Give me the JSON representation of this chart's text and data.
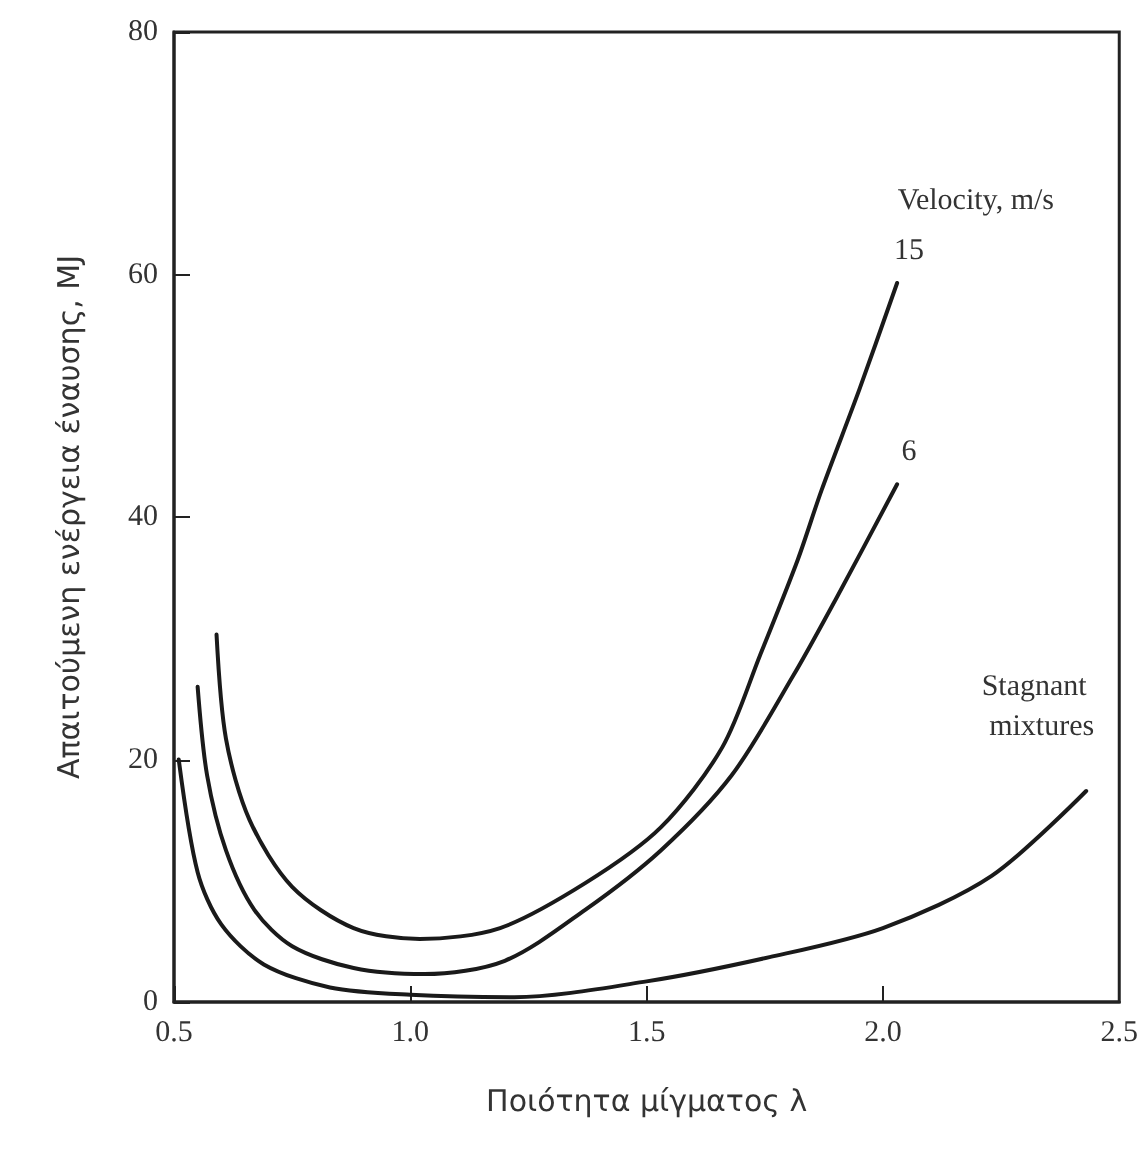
{
  "chart_data": {
    "type": "line",
    "xlabel": "Ποιότητα μίγματος λ",
    "ylabel": "Απαιτούμενη ενέργεια έναυσης, MJ",
    "legend_title": "Velocity, m/s",
    "xlim": [
      0.5,
      2.5
    ],
    "xticks": [
      {
        "value": 0.5,
        "label": "0.5"
      },
      {
        "value": 1,
        "label": "1.0"
      },
      {
        "value": 1.5,
        "label": "1.5"
      },
      {
        "value": 2,
        "label": "2.0"
      },
      {
        "value": 2.5,
        "label": "2.5"
      }
    ],
    "ylim": [
      0,
      80
    ],
    "yticks": [
      0,
      20,
      40,
      60,
      80
    ],
    "grid": false,
    "marker": "none",
    "line_style": "solid",
    "series": [
      {
        "name": "15",
        "color": "#1a1a1a",
        "x": [
          0.59,
          0.61,
          0.66,
          0.75,
          0.88,
          1.02,
          1.19,
          1.37,
          1.53,
          1.66,
          1.74,
          1.82,
          1.87,
          1.95,
          2.03
        ],
        "values": [
          30.3,
          21.7,
          15,
          9.5,
          6.1,
          5.2,
          6.1,
          9.8,
          14.4,
          21,
          28.6,
          36.5,
          42.2,
          50.5,
          59.3
        ]
      },
      {
        "name": "6",
        "color": "#1a1a1a",
        "x": [
          0.55,
          0.57,
          0.61,
          0.67,
          0.75,
          0.88,
          1.03,
          1.2,
          1.37,
          1.53,
          1.68,
          1.81,
          1.9,
          2.03
        ],
        "values": [
          26,
          18.7,
          12.5,
          7.6,
          4.6,
          2.8,
          2.3,
          3.4,
          7.6,
          12.5,
          18.7,
          26.9,
          33.2,
          42.7
        ]
      },
      {
        "name": "Stagnant mixtures",
        "color": "#1a1a1a",
        "x": [
          0.51,
          0.55,
          0.6,
          0.69,
          0.83,
          1.0,
          1.22,
          1.5,
          1.76,
          2.0,
          2.23,
          2.43
        ],
        "values": [
          20,
          10.7,
          6.4,
          3.1,
          1.2,
          0.6,
          0.4,
          1.7,
          3.7,
          6.1,
          10.4,
          17.4
        ]
      }
    ]
  }
}
